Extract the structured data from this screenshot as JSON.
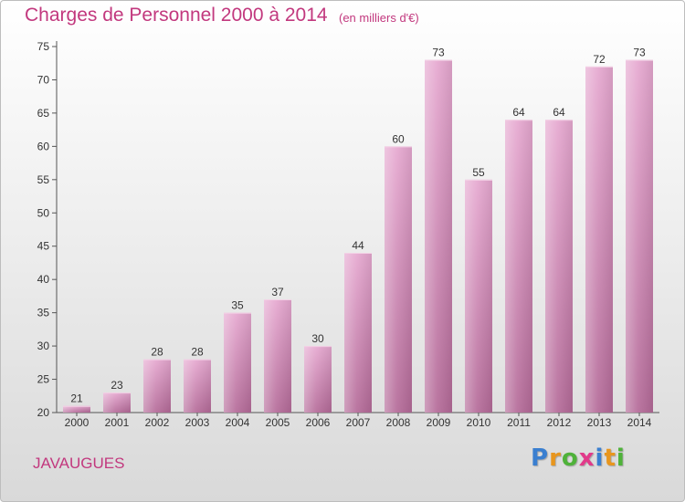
{
  "header": {
    "title": "Charges de Personnel 2000 à 2014",
    "subtitle": "(en milliers d'€)"
  },
  "footer": {
    "commune": "JAVAUGUES",
    "logo_letters": [
      "P",
      "r",
      "o",
      "x",
      "i",
      "t",
      "i"
    ]
  },
  "colors": {
    "title": "#c2387e",
    "bar_top": "#e6a8d0",
    "bar_bottom": "#b46a98",
    "logo_letters": [
      "#3a7fd0",
      "#e8961e",
      "#4fb23a",
      "#e23a8a",
      "#3a7fd0",
      "#e8961e",
      "#4fb23a"
    ]
  },
  "chart_data": {
    "type": "bar",
    "title": "Charges de Personnel 2000 à 2014",
    "subtitle": "(en milliers d'€)",
    "categories": [
      "2000",
      "2001",
      "2002",
      "2003",
      "2004",
      "2005",
      "2006",
      "2007",
      "2008",
      "2009",
      "2010",
      "2011",
      "2012",
      "2013",
      "2014"
    ],
    "values": [
      21,
      23,
      28,
      28,
      35,
      37,
      30,
      44,
      60,
      73,
      55,
      64,
      64,
      72,
      73
    ],
    "ylim": [
      20,
      75
    ],
    "yticks": [
      20,
      25,
      30,
      35,
      40,
      45,
      50,
      55,
      60,
      65,
      70,
      75
    ],
    "grid": false,
    "legend": "none",
    "xlabel": "",
    "ylabel": ""
  }
}
